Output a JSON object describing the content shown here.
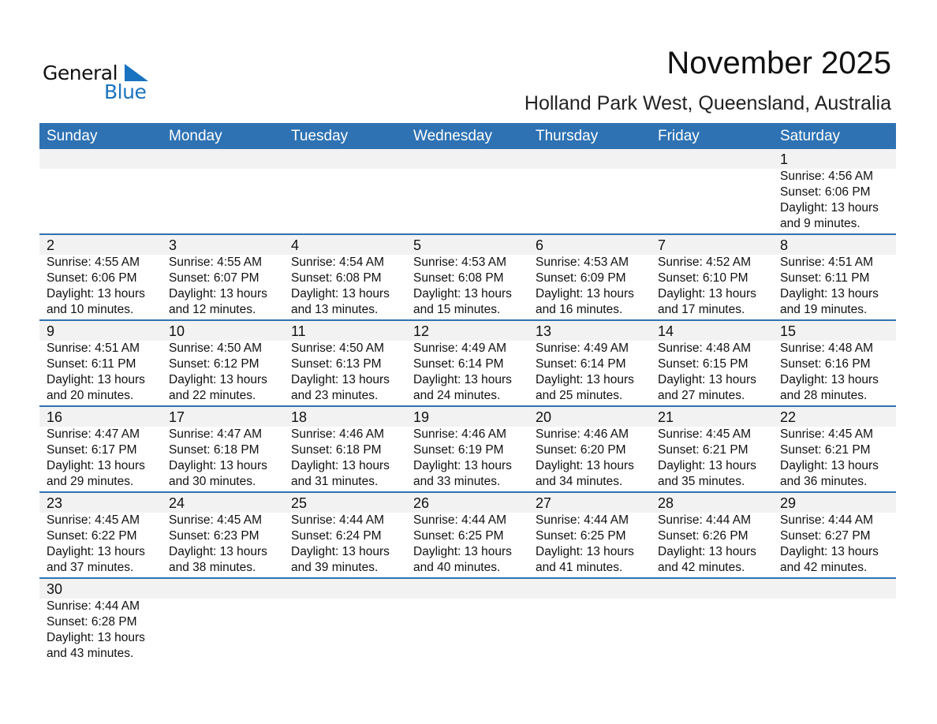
{
  "logo": {
    "general": "General",
    "blue": "Blue"
  },
  "header": {
    "title": "November 2025",
    "location": "Holland Park West, Queensland, Australia"
  },
  "weekdays": [
    "Sunday",
    "Monday",
    "Tuesday",
    "Wednesday",
    "Thursday",
    "Friday",
    "Saturday"
  ],
  "colors": {
    "accent": "#2e72b3",
    "band": "#f2f2f2"
  },
  "weeks": [
    [
      null,
      null,
      null,
      null,
      null,
      null,
      {
        "day": "1",
        "sunrise": "Sunrise: 4:56 AM",
        "sunset": "Sunset: 6:06 PM",
        "daylight": "Daylight: 13 hours",
        "minutes": "and 9 minutes."
      }
    ],
    [
      {
        "day": "2",
        "sunrise": "Sunrise: 4:55 AM",
        "sunset": "Sunset: 6:06 PM",
        "daylight": "Daylight: 13 hours",
        "minutes": "and 10 minutes."
      },
      {
        "day": "3",
        "sunrise": "Sunrise: 4:55 AM",
        "sunset": "Sunset: 6:07 PM",
        "daylight": "Daylight: 13 hours",
        "minutes": "and 12 minutes."
      },
      {
        "day": "4",
        "sunrise": "Sunrise: 4:54 AM",
        "sunset": "Sunset: 6:08 PM",
        "daylight": "Daylight: 13 hours",
        "minutes": "and 13 minutes."
      },
      {
        "day": "5",
        "sunrise": "Sunrise: 4:53 AM",
        "sunset": "Sunset: 6:08 PM",
        "daylight": "Daylight: 13 hours",
        "minutes": "and 15 minutes."
      },
      {
        "day": "6",
        "sunrise": "Sunrise: 4:53 AM",
        "sunset": "Sunset: 6:09 PM",
        "daylight": "Daylight: 13 hours",
        "minutes": "and 16 minutes."
      },
      {
        "day": "7",
        "sunrise": "Sunrise: 4:52 AM",
        "sunset": "Sunset: 6:10 PM",
        "daylight": "Daylight: 13 hours",
        "minutes": "and 17 minutes."
      },
      {
        "day": "8",
        "sunrise": "Sunrise: 4:51 AM",
        "sunset": "Sunset: 6:11 PM",
        "daylight": "Daylight: 13 hours",
        "minutes": "and 19 minutes."
      }
    ],
    [
      {
        "day": "9",
        "sunrise": "Sunrise: 4:51 AM",
        "sunset": "Sunset: 6:11 PM",
        "daylight": "Daylight: 13 hours",
        "minutes": "and 20 minutes."
      },
      {
        "day": "10",
        "sunrise": "Sunrise: 4:50 AM",
        "sunset": "Sunset: 6:12 PM",
        "daylight": "Daylight: 13 hours",
        "minutes": "and 22 minutes."
      },
      {
        "day": "11",
        "sunrise": "Sunrise: 4:50 AM",
        "sunset": "Sunset: 6:13 PM",
        "daylight": "Daylight: 13 hours",
        "minutes": "and 23 minutes."
      },
      {
        "day": "12",
        "sunrise": "Sunrise: 4:49 AM",
        "sunset": "Sunset: 6:14 PM",
        "daylight": "Daylight: 13 hours",
        "minutes": "and 24 minutes."
      },
      {
        "day": "13",
        "sunrise": "Sunrise: 4:49 AM",
        "sunset": "Sunset: 6:14 PM",
        "daylight": "Daylight: 13 hours",
        "minutes": "and 25 minutes."
      },
      {
        "day": "14",
        "sunrise": "Sunrise: 4:48 AM",
        "sunset": "Sunset: 6:15 PM",
        "daylight": "Daylight: 13 hours",
        "minutes": "and 27 minutes."
      },
      {
        "day": "15",
        "sunrise": "Sunrise: 4:48 AM",
        "sunset": "Sunset: 6:16 PM",
        "daylight": "Daylight: 13 hours",
        "minutes": "and 28 minutes."
      }
    ],
    [
      {
        "day": "16",
        "sunrise": "Sunrise: 4:47 AM",
        "sunset": "Sunset: 6:17 PM",
        "daylight": "Daylight: 13 hours",
        "minutes": "and 29 minutes."
      },
      {
        "day": "17",
        "sunrise": "Sunrise: 4:47 AM",
        "sunset": "Sunset: 6:18 PM",
        "daylight": "Daylight: 13 hours",
        "minutes": "and 30 minutes."
      },
      {
        "day": "18",
        "sunrise": "Sunrise: 4:46 AM",
        "sunset": "Sunset: 6:18 PM",
        "daylight": "Daylight: 13 hours",
        "minutes": "and 31 minutes."
      },
      {
        "day": "19",
        "sunrise": "Sunrise: 4:46 AM",
        "sunset": "Sunset: 6:19 PM",
        "daylight": "Daylight: 13 hours",
        "minutes": "and 33 minutes."
      },
      {
        "day": "20",
        "sunrise": "Sunrise: 4:46 AM",
        "sunset": "Sunset: 6:20 PM",
        "daylight": "Daylight: 13 hours",
        "minutes": "and 34 minutes."
      },
      {
        "day": "21",
        "sunrise": "Sunrise: 4:45 AM",
        "sunset": "Sunset: 6:21 PM",
        "daylight": "Daylight: 13 hours",
        "minutes": "and 35 minutes."
      },
      {
        "day": "22",
        "sunrise": "Sunrise: 4:45 AM",
        "sunset": "Sunset: 6:21 PM",
        "daylight": "Daylight: 13 hours",
        "minutes": "and 36 minutes."
      }
    ],
    [
      {
        "day": "23",
        "sunrise": "Sunrise: 4:45 AM",
        "sunset": "Sunset: 6:22 PM",
        "daylight": "Daylight: 13 hours",
        "minutes": "and 37 minutes."
      },
      {
        "day": "24",
        "sunrise": "Sunrise: 4:45 AM",
        "sunset": "Sunset: 6:23 PM",
        "daylight": "Daylight: 13 hours",
        "minutes": "and 38 minutes."
      },
      {
        "day": "25",
        "sunrise": "Sunrise: 4:44 AM",
        "sunset": "Sunset: 6:24 PM",
        "daylight": "Daylight: 13 hours",
        "minutes": "and 39 minutes."
      },
      {
        "day": "26",
        "sunrise": "Sunrise: 4:44 AM",
        "sunset": "Sunset: 6:25 PM",
        "daylight": "Daylight: 13 hours",
        "minutes": "and 40 minutes."
      },
      {
        "day": "27",
        "sunrise": "Sunrise: 4:44 AM",
        "sunset": "Sunset: 6:25 PM",
        "daylight": "Daylight: 13 hours",
        "minutes": "and 41 minutes."
      },
      {
        "day": "28",
        "sunrise": "Sunrise: 4:44 AM",
        "sunset": "Sunset: 6:26 PM",
        "daylight": "Daylight: 13 hours",
        "minutes": "and 42 minutes."
      },
      {
        "day": "29",
        "sunrise": "Sunrise: 4:44 AM",
        "sunset": "Sunset: 6:27 PM",
        "daylight": "Daylight: 13 hours",
        "minutes": "and 42 minutes."
      }
    ],
    [
      {
        "day": "30",
        "sunrise": "Sunrise: 4:44 AM",
        "sunset": "Sunset: 6:28 PM",
        "daylight": "Daylight: 13 hours",
        "minutes": "and 43 minutes."
      },
      null,
      null,
      null,
      null,
      null,
      null
    ]
  ]
}
